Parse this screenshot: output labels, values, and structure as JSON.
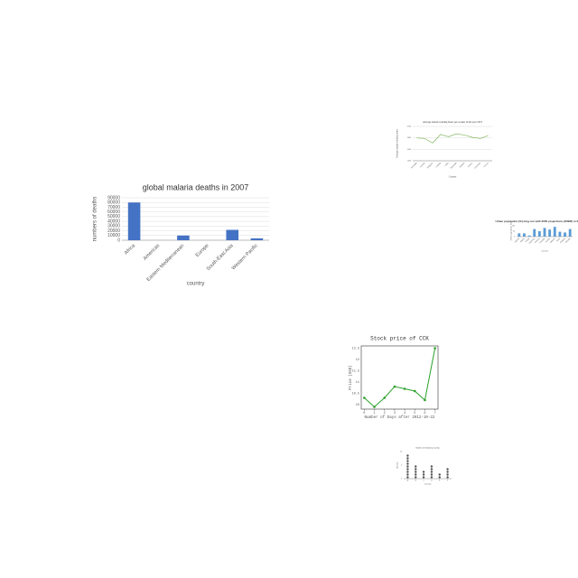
{
  "chart_data": [
    {
      "type": "bar",
      "title": "global malaria deaths in 2007",
      "x_label": "country",
      "y_label": "numbers of deaths",
      "categories": [
        "Africa",
        "Americas",
        "Eastern Mediterranean",
        "Europe",
        "South-East Asia",
        "Western Pacific"
      ],
      "values": [
        80000,
        100,
        10000,
        0,
        22000,
        4000
      ],
      "color": "#4472c4",
      "ylim": [
        0,
        90000
      ],
      "yticks": [
        0,
        10000,
        20000,
        30000,
        40000,
        50000,
        60000,
        70000,
        80000,
        90000
      ],
      "grid": true
    },
    {
      "type": "line",
      "title": "Average annual working hours per worker in the year 2013",
      "x_label": "Country",
      "y_label": "Average annual working hours",
      "categories": [
        "Australia",
        "Austria",
        "Belgium",
        "Canada",
        "Chile",
        "Denmark",
        "Finland",
        "France",
        "Germany",
        "Greece"
      ],
      "values": [
        1800,
        1790,
        1710,
        1860,
        1820,
        1870,
        1850,
        1810,
        1790,
        1840
      ],
      "color": "#70ad47",
      "ylim": [
        1400,
        2000
      ],
      "yticks": [
        1400,
        1600,
        1800,
        2000
      ],
      "grid": true
    },
    {
      "type": "bar",
      "title": "Urban population (%) long-run with 2050 projections (OWID) in the year 1960",
      "x_label": "Country",
      "y_label": "Urban population (%)",
      "categories": [
        "Albania",
        "Algeria",
        "Angola",
        "Argentina",
        "Armenia",
        "Australia",
        "Austria",
        "Belgium",
        "Brazil",
        "Bulgaria",
        "Canada"
      ],
      "values": [
        30,
        30,
        10,
        70,
        50,
        80,
        65,
        90,
        45,
        38,
        70
      ],
      "color": "#5b9bd5",
      "ylim": [
        0,
        100
      ],
      "yticks": [
        0,
        50,
        100
      ],
      "grid": false
    },
    {
      "type": "line",
      "title": "Stock price of CCK",
      "x_label": "Number of Days after 2012-10-22",
      "y_label": "Price (USD)",
      "x": [
        0,
        1,
        2,
        3,
        4,
        5,
        6,
        7
      ],
      "values": [
        10.3,
        9.9,
        10.3,
        10.8,
        10.7,
        10.6,
        10.2,
        12.5
      ],
      "color": "#2ca02c",
      "markers": true,
      "xlim": [
        -0.3,
        7.3
      ],
      "xticks": [
        0,
        1,
        2,
        3,
        4,
        5,
        6,
        7
      ],
      "ylim": [
        9.8,
        12.6
      ],
      "yticks": [
        10.0,
        10.5,
        11.0,
        11.5,
        12.0,
        12.5
      ],
      "grid": false
    },
    {
      "type": "dot",
      "title": "Number of medals by country",
      "x_label": "Country",
      "y_label": "Medals",
      "categories": [
        "A",
        "B",
        "C",
        "D",
        "E",
        "F"
      ],
      "values": [
        9,
        5,
        3,
        5,
        2,
        4
      ],
      "color": "#555555",
      "ylim": [
        0,
        10
      ],
      "yticks": [
        0,
        5,
        10
      ],
      "grid": false
    }
  ]
}
